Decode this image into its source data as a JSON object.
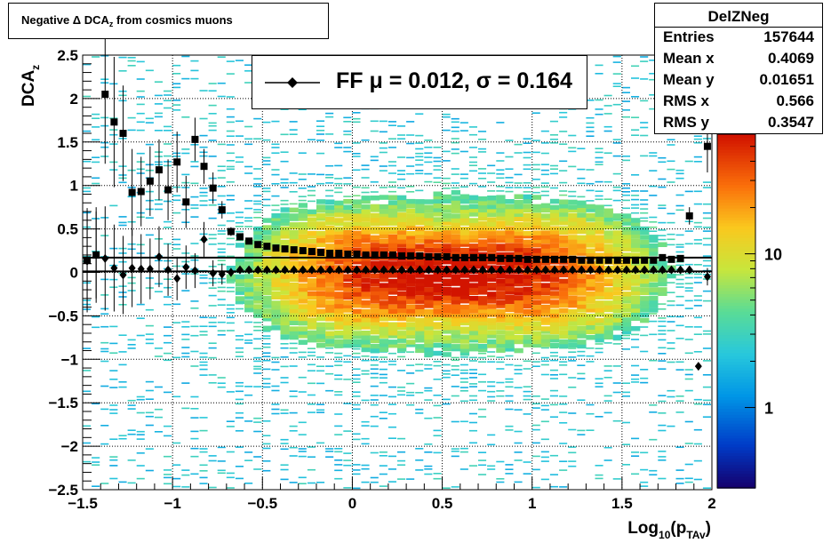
{
  "title": {
    "prefix": "Negative Δ DCA",
    "sub": "z",
    "suffix": " from cosmics muons"
  },
  "stats": {
    "name": "DelZNeg",
    "rows": [
      {
        "key": "Entries",
        "value": "157644"
      },
      {
        "key": "Mean x",
        "value": "0.4069"
      },
      {
        "key": "Mean y",
        "value": "0.01651"
      },
      {
        "key": "RMS x",
        "value": "0.566"
      },
      {
        "key": "RMS y",
        "value": "0.3547"
      }
    ]
  },
  "legend": {
    "label": "FF μ =  0.012, σ =   0.164"
  },
  "chart_data": {
    "type": "heatmap",
    "xlabel": "Log",
    "xlabel_sub1": "10",
    "xlabel_mid": "(p",
    "xlabel_sub2": "TAv",
    "xlabel_end": ")",
    "ylabel": "DCA",
    "ylabel_sub": "z",
    "xlim": [
      -1.5,
      2
    ],
    "ylim": [
      -2.5,
      2.5
    ],
    "x_ticks": [
      -1.5,
      -1,
      -0.5,
      0,
      0.5,
      1,
      1.5,
      2
    ],
    "x_tick_labels": [
      "−1.5",
      "−1",
      "−0.5",
      "0",
      "0.5",
      "1",
      "1.5",
      "2"
    ],
    "y_ticks": [
      -2.5,
      -2,
      -1.5,
      -1,
      -0.5,
      0,
      0.5,
      1,
      1.5,
      2,
      2.5
    ],
    "y_tick_labels": [
      "−2.5",
      "−2",
      "−1.5",
      "−1",
      "−0.5",
      "0",
      "0.5",
      "1",
      "1.5",
      "2",
      "2.5"
    ],
    "grid": true,
    "z_scale": "log",
    "z_ticks": [
      1,
      10
    ],
    "z_tick_labels": [
      "1",
      "10"
    ],
    "z_range": [
      0.3,
      60
    ],
    "density_center_x": 0.55,
    "density_center_y": 0.0,
    "mean_line_y": 0.17,
    "fit_line_y": 0.012,
    "series": [
      {
        "name": "FF",
        "marker": "diamond",
        "x": [
          -1.475,
          -1.425,
          -1.375,
          -1.325,
          -1.275,
          -1.225,
          -1.175,
          -1.125,
          -1.075,
          -1.025,
          -0.975,
          -0.925,
          -0.875,
          -0.825,
          -0.775,
          -0.725,
          -0.675,
          -0.625,
          -0.575,
          -0.525,
          -0.475,
          -0.425,
          -0.375,
          -0.325,
          -0.275,
          -0.225,
          -0.175,
          -0.125,
          -0.075,
          -0.025,
          0.025,
          0.075,
          0.125,
          0.175,
          0.225,
          0.275,
          0.325,
          0.375,
          0.425,
          0.475,
          0.525,
          0.575,
          0.625,
          0.675,
          0.725,
          0.775,
          0.825,
          0.875,
          0.925,
          0.975,
          1.025,
          1.075,
          1.125,
          1.175,
          1.225,
          1.275,
          1.325,
          1.375,
          1.425,
          1.475,
          1.525,
          1.575,
          1.625,
          1.675,
          1.725,
          1.775,
          1.825,
          1.875,
          1.925,
          1.975
        ],
        "y": [
          0.13,
          0.2,
          0.16,
          0.05,
          -0.03,
          0.05,
          0.04,
          0.04,
          0.18,
          0.03,
          -0.07,
          0.06,
          0.02,
          0.38,
          -0.01,
          -0.02,
          0.0,
          0.03,
          0.03,
          0.03,
          0.03,
          0.03,
          0.03,
          0.03,
          0.03,
          0.03,
          0.03,
          0.03,
          0.03,
          0.03,
          0.03,
          0.03,
          0.03,
          0.03,
          0.03,
          0.03,
          0.03,
          0.03,
          0.03,
          0.03,
          0.03,
          0.03,
          0.03,
          0.03,
          0.03,
          0.03,
          0.03,
          0.03,
          0.03,
          0.03,
          0.03,
          0.03,
          0.03,
          0.03,
          0.03,
          0.03,
          0.03,
          0.03,
          0.03,
          0.03,
          0.03,
          0.03,
          0.03,
          0.03,
          0.03,
          0.03,
          0.03,
          0.03,
          -1.08,
          -0.05
        ],
        "yerr": [
          0.55,
          0.5,
          0.6,
          0.5,
          0.45,
          0.45,
          0.4,
          0.35,
          0.35,
          0.3,
          0.25,
          0.25,
          0.2,
          0.2,
          0.15,
          0.12,
          0.05,
          0.03,
          0.02,
          0.02,
          0.01,
          0.01,
          0.01,
          0.01,
          0.01,
          0.01,
          0.01,
          0.01,
          0.01,
          0.01,
          0.01,
          0.01,
          0.01,
          0.01,
          0.01,
          0.01,
          0.01,
          0.01,
          0.01,
          0.01,
          0.01,
          0.01,
          0.01,
          0.01,
          0.01,
          0.01,
          0.01,
          0.01,
          0.01,
          0.01,
          0.01,
          0.01,
          0.01,
          0.01,
          0.01,
          0.01,
          0.01,
          0.01,
          0.01,
          0.01,
          0.01,
          0.01,
          0.01,
          0.01,
          0.01,
          0.01,
          0.01,
          0.02,
          0.03,
          0.1
        ]
      },
      {
        "name": "",
        "marker": "square",
        "x": [
          -1.475,
          -1.425,
          -1.375,
          -1.325,
          -1.275,
          -1.225,
          -1.175,
          -1.125,
          -1.075,
          -1.025,
          -0.975,
          -0.925,
          -0.875,
          -0.825,
          -0.775,
          -0.725,
          -0.675,
          -0.625,
          -0.575,
          -0.525,
          -0.475,
          -0.425,
          -0.375,
          -0.325,
          -0.275,
          -0.225,
          -0.175,
          -0.125,
          -0.075,
          -0.025,
          0.025,
          0.075,
          0.125,
          0.175,
          0.225,
          0.275,
          0.325,
          0.375,
          0.425,
          0.475,
          0.525,
          0.575,
          0.625,
          0.675,
          0.725,
          0.775,
          0.825,
          0.875,
          0.925,
          0.975,
          1.025,
          1.075,
          1.125,
          1.175,
          1.225,
          1.275,
          1.325,
          1.375,
          1.425,
          1.475,
          1.525,
          1.575,
          1.625,
          1.675,
          1.725,
          1.775,
          1.825,
          1.875,
          1.975
        ],
        "y": [
          0.14,
          0.2,
          2.05,
          1.73,
          1.6,
          0.92,
          0.93,
          1.05,
          1.18,
          0.95,
          1.27,
          0.81,
          1.53,
          1.22,
          0.97,
          0.72,
          0.47,
          0.41,
          0.36,
          0.32,
          0.3,
          0.28,
          0.27,
          0.26,
          0.25,
          0.24,
          0.23,
          0.22,
          0.22,
          0.21,
          0.21,
          0.2,
          0.2,
          0.2,
          0.2,
          0.19,
          0.19,
          0.19,
          0.18,
          0.18,
          0.18,
          0.17,
          0.17,
          0.17,
          0.17,
          0.17,
          0.16,
          0.16,
          0.16,
          0.15,
          0.15,
          0.15,
          0.15,
          0.15,
          0.15,
          0.14,
          0.14,
          0.14,
          0.14,
          0.14,
          0.14,
          0.14,
          0.14,
          0.14,
          0.17,
          0.15,
          0.16,
          0.65,
          1.45
        ],
        "yerr": [
          0.6,
          0.55,
          0.8,
          0.75,
          0.55,
          0.5,
          0.4,
          0.4,
          0.35,
          0.35,
          0.35,
          0.3,
          0.25,
          0.2,
          0.18,
          0.1,
          0.05,
          0.04,
          0.03,
          0.02,
          0.02,
          0.01,
          0.01,
          0.01,
          0.01,
          0.01,
          0.01,
          0.01,
          0.01,
          0.01,
          0.01,
          0.01,
          0.01,
          0.01,
          0.01,
          0.01,
          0.01,
          0.01,
          0.01,
          0.01,
          0.01,
          0.01,
          0.01,
          0.01,
          0.01,
          0.01,
          0.01,
          0.01,
          0.01,
          0.01,
          0.01,
          0.01,
          0.01,
          0.01,
          0.01,
          0.01,
          0.01,
          0.01,
          0.01,
          0.01,
          0.01,
          0.01,
          0.01,
          0.01,
          0.01,
          0.01,
          0.01,
          0.1,
          0.3
        ]
      }
    ]
  }
}
